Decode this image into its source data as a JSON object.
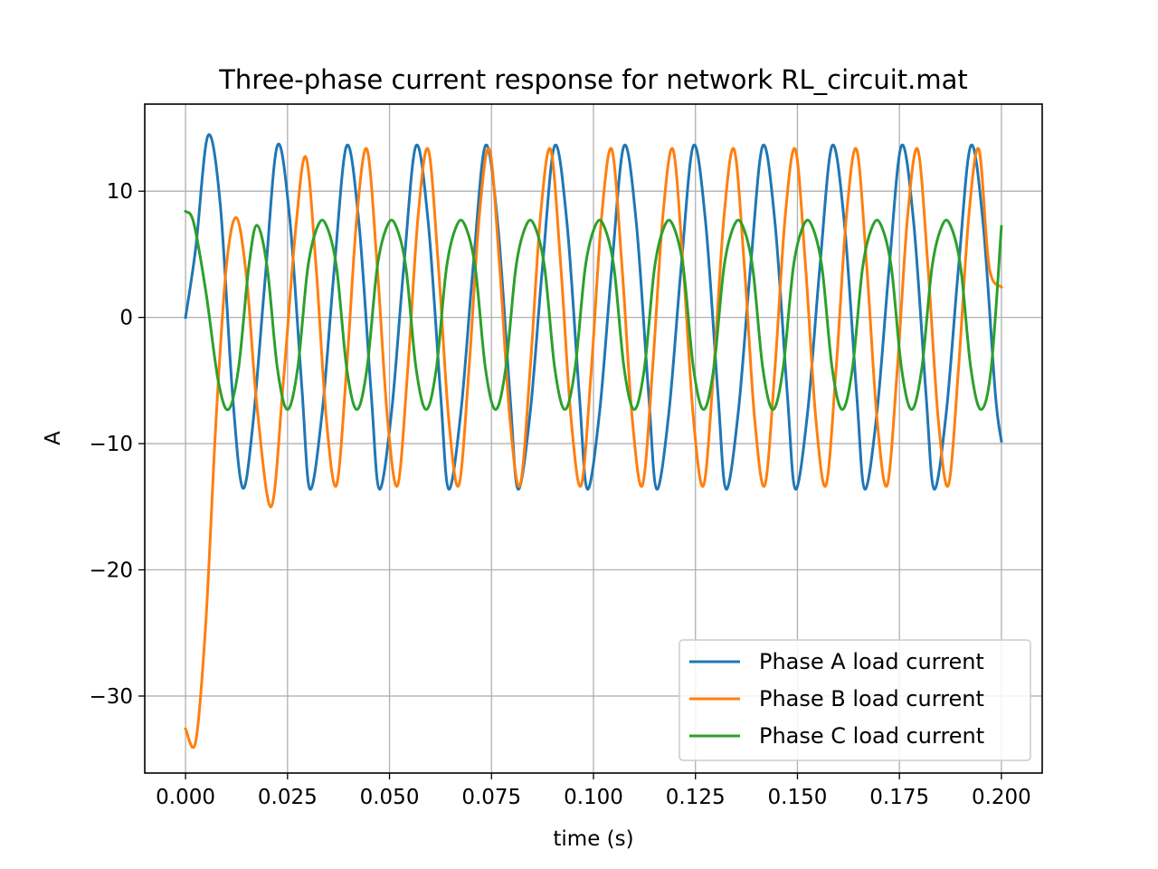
{
  "chart_data": {
    "type": "line",
    "title": "Three-phase current response for network RL_circuit.mat",
    "xlabel": "time (s)",
    "ylabel": "A",
    "xlim": [
      -0.01,
      0.21
    ],
    "ylim": [
      -36.1,
      16.9
    ],
    "xticks": [
      0.0,
      0.025,
      0.05,
      0.075,
      0.1,
      0.125,
      0.15,
      0.175,
      0.2
    ],
    "xtick_labels": [
      "0.000",
      "0.025",
      "0.050",
      "0.075",
      "0.100",
      "0.125",
      "0.150",
      "0.175",
      "0.200"
    ],
    "yticks": [
      10,
      0,
      -10,
      -20,
      -30
    ],
    "ytick_labels": [
      "10",
      "0",
      "−10",
      "−20",
      "−30"
    ],
    "grid": true,
    "legend_position": "lower-right",
    "series": [
      {
        "name": "Phase A load current",
        "color": "#1f77b4",
        "x": [
          0.0,
          0.0025,
          0.0055,
          0.0085,
          0.0115,
          0.014,
          0.0165,
          0.0195,
          0.0225,
          0.0255,
          0.0285,
          0.0305,
          0.0335,
          0.0365,
          0.0395,
          0.0425,
          0.0455,
          0.0475,
          0.0505,
          0.0535,
          0.0565,
          0.0595,
          0.0625,
          0.0645,
          0.0675,
          0.0705,
          0.0735,
          0.0765,
          0.0795,
          0.0815,
          0.0845,
          0.0875,
          0.0905,
          0.0935,
          0.0965,
          0.0985,
          0.1015,
          0.1045,
          0.1075,
          0.1105,
          0.1135,
          0.1155,
          0.1185,
          0.1215,
          0.1245,
          0.1275,
          0.1305,
          0.1325,
          0.1355,
          0.1385,
          0.1415,
          0.1445,
          0.1475,
          0.1495,
          0.1525,
          0.1555,
          0.1585,
          0.1615,
          0.1645,
          0.1665,
          0.1695,
          0.1725,
          0.1755,
          0.1785,
          0.1815,
          0.1835,
          0.1865,
          0.1895,
          0.1925,
          0.1955,
          0.1985,
          0.2
        ],
        "y": [
          0.0,
          5.5,
          14.4,
          9.0,
          -6.0,
          -13.5,
          -8.5,
          3.0,
          13.6,
          8.0,
          -5.5,
          -13.6,
          -7.5,
          4.0,
          13.6,
          7.5,
          -6.0,
          -13.6,
          -7.5,
          4.0,
          13.6,
          7.5,
          -6.0,
          -13.6,
          -7.5,
          4.0,
          13.6,
          7.5,
          -6.0,
          -13.6,
          -7.5,
          4.0,
          13.6,
          7.5,
          -6.0,
          -13.6,
          -7.5,
          4.0,
          13.6,
          7.5,
          -6.0,
          -13.6,
          -7.5,
          4.0,
          13.6,
          7.5,
          -6.0,
          -13.6,
          -7.5,
          4.0,
          13.6,
          7.5,
          -6.0,
          -13.6,
          -7.5,
          4.0,
          13.6,
          7.5,
          -6.0,
          -13.6,
          -7.5,
          4.0,
          13.6,
          7.5,
          -6.0,
          -13.6,
          -7.5,
          4.0,
          13.6,
          7.5,
          -6.0,
          -9.8
        ]
      },
      {
        "name": "Phase B load current",
        "color": "#ff7f0e",
        "x": [
          0.0,
          0.0025,
          0.005,
          0.0075,
          0.01,
          0.0125,
          0.015,
          0.0175,
          0.021,
          0.024,
          0.027,
          0.0295,
          0.032,
          0.0345,
          0.037,
          0.0395,
          0.042,
          0.0445,
          0.047,
          0.0495,
          0.052,
          0.0545,
          0.057,
          0.0595,
          0.062,
          0.0645,
          0.067,
          0.0695,
          0.072,
          0.0745,
          0.077,
          0.0795,
          0.082,
          0.0845,
          0.087,
          0.0895,
          0.092,
          0.0945,
          0.097,
          0.0995,
          0.102,
          0.1045,
          0.107,
          0.1095,
          0.112,
          0.1145,
          0.117,
          0.1195,
          0.122,
          0.1245,
          0.127,
          0.1295,
          0.132,
          0.1345,
          0.137,
          0.1395,
          0.142,
          0.1445,
          0.147,
          0.1495,
          0.152,
          0.1545,
          0.157,
          0.1595,
          0.162,
          0.1645,
          0.167,
          0.1695,
          0.172,
          0.1745,
          0.177,
          0.1795,
          0.182,
          0.1845,
          0.187,
          0.1895,
          0.192,
          0.1945,
          0.197,
          0.2
        ],
        "y": [
          -32.6,
          -33.6,
          -24.0,
          -8.0,
          4.0,
          7.9,
          3.0,
          -7.0,
          -15.0,
          -5.0,
          7.0,
          12.7,
          4.0,
          -8.0,
          -13.3,
          -4.0,
          8.0,
          13.3,
          4.0,
          -8.0,
          -13.3,
          -4.0,
          8.0,
          13.3,
          4.0,
          -8.0,
          -13.3,
          -4.0,
          8.0,
          13.3,
          4.0,
          -8.0,
          -13.3,
          -4.0,
          8.0,
          13.3,
          4.0,
          -8.0,
          -13.3,
          -4.0,
          8.0,
          13.3,
          4.0,
          -8.0,
          -13.3,
          -4.0,
          8.0,
          13.3,
          4.0,
          -8.0,
          -13.3,
          -4.0,
          8.0,
          13.3,
          4.0,
          -8.0,
          -13.3,
          -4.0,
          8.0,
          13.3,
          4.0,
          -8.0,
          -13.3,
          -4.0,
          8.0,
          13.3,
          4.0,
          -8.0,
          -13.3,
          -4.0,
          8.0,
          13.3,
          4.0,
          -8.0,
          -13.3,
          -4.0,
          8.0,
          13.3,
          4.0,
          2.4
        ]
      },
      {
        "name": "Phase C load current",
        "color": "#2ca02c",
        "x": [
          0.0,
          0.002,
          0.005,
          0.008,
          0.0105,
          0.013,
          0.0155,
          0.0175,
          0.02,
          0.0225,
          0.025,
          0.0275,
          0.03,
          0.0325,
          0.0345,
          0.037,
          0.0395,
          0.042,
          0.0445,
          0.047,
          0.0495,
          0.0515,
          0.054,
          0.0565,
          0.059,
          0.0615,
          0.064,
          0.0665,
          0.0685,
          0.071,
          0.0735,
          0.076,
          0.0785,
          0.081,
          0.0835,
          0.0855,
          0.088,
          0.0905,
          0.093,
          0.0955,
          0.098,
          0.1005,
          0.1025,
          0.105,
          0.1075,
          0.11,
          0.1125,
          0.115,
          0.1175,
          0.1195,
          0.122,
          0.1245,
          0.127,
          0.1295,
          0.132,
          0.1345,
          0.1365,
          0.139,
          0.1415,
          0.144,
          0.1465,
          0.149,
          0.1515,
          0.1535,
          0.156,
          0.1585,
          0.161,
          0.1635,
          0.166,
          0.1685,
          0.1705,
          0.173,
          0.1755,
          0.178,
          0.1805,
          0.183,
          0.1855,
          0.1875,
          0.19,
          0.1925,
          0.195,
          0.1975,
          0.2
        ],
        "y": [
          8.4,
          7.5,
          2.0,
          -5.0,
          -7.3,
          -4.0,
          4.0,
          7.3,
          4.0,
          -4.0,
          -7.3,
          -4.0,
          4.0,
          7.3,
          7.3,
          4.0,
          -4.0,
          -7.3,
          -4.0,
          4.0,
          7.3,
          7.3,
          4.0,
          -4.0,
          -7.3,
          -4.0,
          4.0,
          7.3,
          7.3,
          4.0,
          -4.0,
          -7.3,
          -4.0,
          4.0,
          7.3,
          7.3,
          4.0,
          -4.0,
          -7.3,
          -4.0,
          4.0,
          7.3,
          7.3,
          4.0,
          -4.0,
          -7.3,
          -4.0,
          4.0,
          7.3,
          7.3,
          4.0,
          -4.0,
          -7.3,
          -4.0,
          4.0,
          7.3,
          7.3,
          4.0,
          -4.0,
          -7.3,
          -4.0,
          4.0,
          7.3,
          7.3,
          4.0,
          -4.0,
          -7.3,
          -4.0,
          4.0,
          7.3,
          7.3,
          4.0,
          -4.0,
          -7.3,
          -4.0,
          4.0,
          7.3,
          7.3,
          4.0,
          -4.0,
          -7.3,
          -4.0,
          7.2
        ]
      }
    ]
  }
}
